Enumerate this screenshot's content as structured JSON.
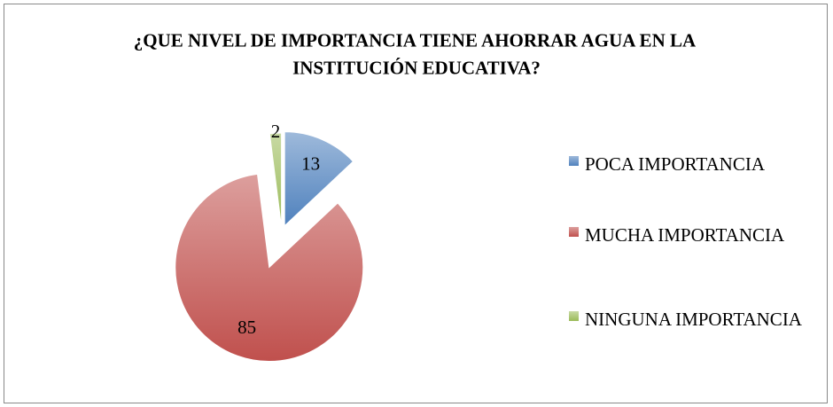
{
  "chart_data": {
    "type": "pie",
    "title": "¿QUE NIVEL DE IMPORTANCIA TIENE AHORRAR AGUA EN LA INSTITUCIÓN EDUCATIVA?",
    "categories": [
      "POCA IMPORTANCIA",
      "MUCHA IMPORTANCIA",
      "NINGUNA IMPORTANCIA"
    ],
    "values": [
      13,
      85,
      2
    ],
    "colors": [
      "#4f81bd",
      "#c0504d",
      "#9bbb59"
    ],
    "legend": "right"
  }
}
